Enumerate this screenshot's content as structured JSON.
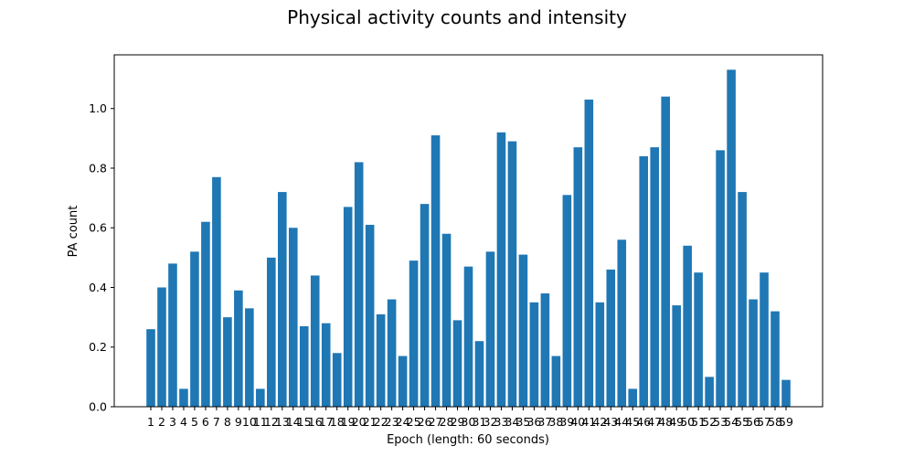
{
  "chart_data": {
    "type": "bar",
    "title": "Physical activity counts and intensity",
    "xlabel": "Epoch (length: 60 seconds)",
    "ylabel": "PA count",
    "ylim": [
      0,
      1.18
    ],
    "yticks": [
      0.0,
      0.2,
      0.4,
      0.6,
      0.8,
      1.0
    ],
    "ytick_labels": [
      "0.0",
      "0.2",
      "0.4",
      "0.6",
      "0.8",
      "1.0"
    ],
    "categories": [
      "1",
      "2",
      "3",
      "4",
      "5",
      "6",
      "7",
      "8",
      "9",
      "10",
      "11",
      "12",
      "13",
      "14",
      "15",
      "16",
      "17",
      "18",
      "19",
      "20",
      "21",
      "22",
      "23",
      "24",
      "25",
      "26",
      "27",
      "28",
      "29",
      "30",
      "31",
      "32",
      "33",
      "34",
      "35",
      "36",
      "37",
      "38",
      "39",
      "40",
      "41",
      "42",
      "43",
      "44",
      "45",
      "46",
      "47",
      "48",
      "49",
      "50",
      "51",
      "52",
      "53",
      "54",
      "55",
      "56",
      "57",
      "58",
      "59"
    ],
    "values": [
      0.26,
      0.4,
      0.48,
      0.06,
      0.52,
      0.62,
      0.77,
      0.3,
      0.39,
      0.33,
      0.06,
      0.5,
      0.72,
      0.6,
      0.27,
      0.44,
      0.28,
      0.18,
      0.67,
      0.82,
      0.61,
      0.31,
      0.36,
      0.17,
      0.49,
      0.68,
      0.91,
      0.58,
      0.29,
      0.47,
      0.22,
      0.52,
      0.92,
      0.89,
      0.51,
      0.35,
      0.38,
      0.17,
      0.71,
      0.87,
      1.03,
      0.35,
      0.46,
      0.56,
      0.06,
      0.84,
      0.87,
      1.04,
      0.34,
      0.54,
      0.45,
      0.1,
      0.86,
      1.13,
      0.72,
      0.36,
      0.45,
      0.32,
      0.09
    ],
    "bar_color": "#1f77b4",
    "grid": false
  }
}
